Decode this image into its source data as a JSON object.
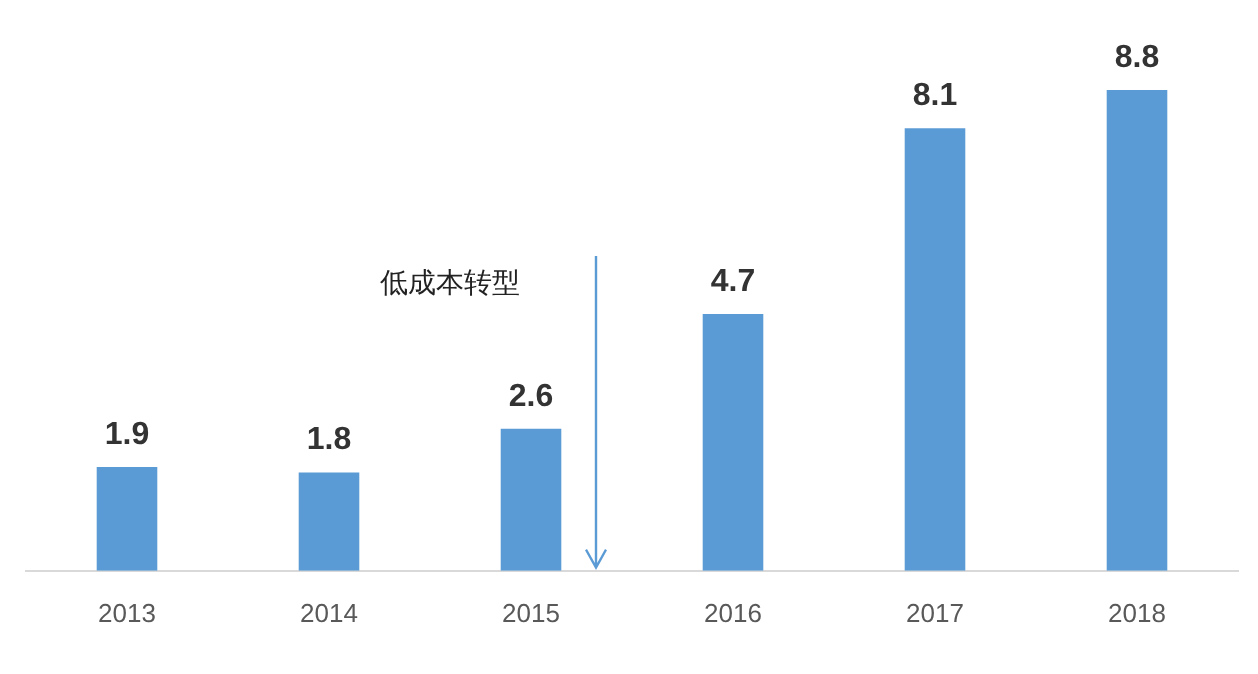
{
  "chart_data": {
    "type": "bar",
    "categories": [
      "2013",
      "2014",
      "2015",
      "2016",
      "2017",
      "2018"
    ],
    "values": [
      1.9,
      1.8,
      2.6,
      4.7,
      8.1,
      8.8
    ],
    "color": "#5b9bd5",
    "tick_labels": "x",
    "data_labels": true,
    "grid": false,
    "legend": false,
    "annotations": [
      "低成本转型"
    ]
  }
}
